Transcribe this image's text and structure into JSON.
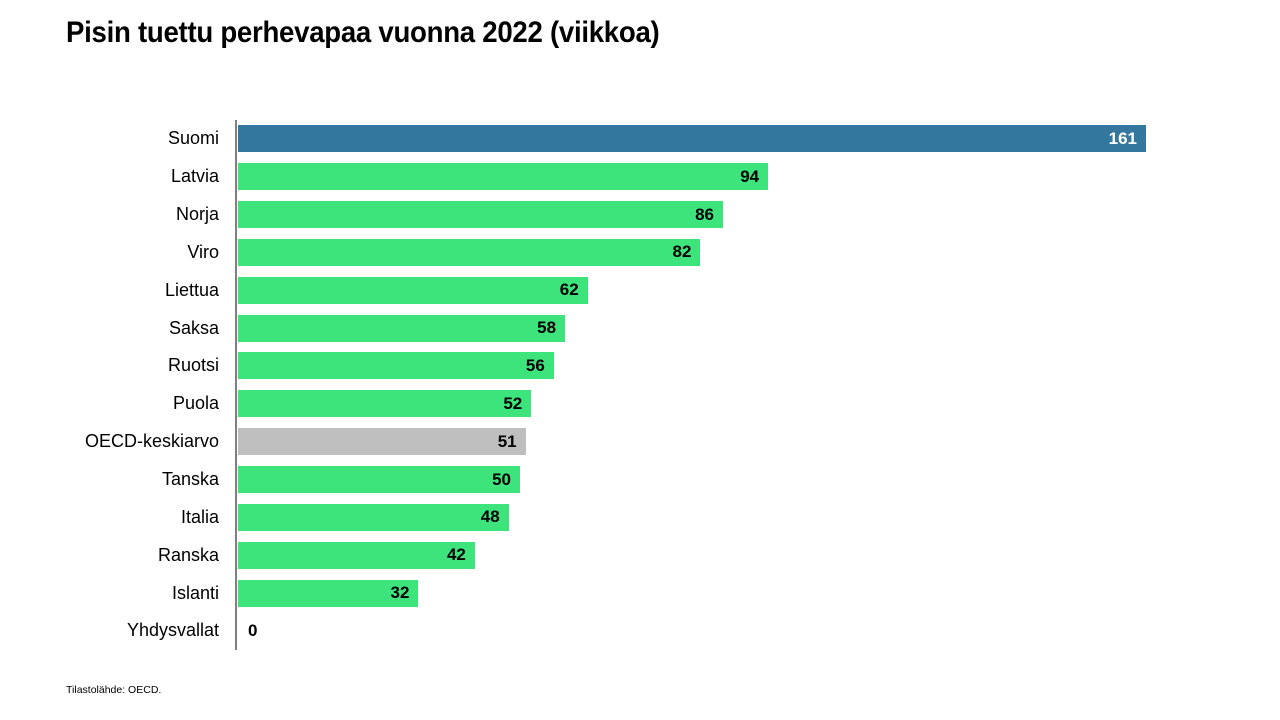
{
  "title": "Pisin tuettu perhevapaa vuonna 2022 (viikkoa)",
  "footer": {
    "source": "Tilastolähde: OECD."
  },
  "colors": {
    "default_bar": "#3de47c",
    "highlight_bar": "#34779e",
    "average_bar": "#bfbfbf",
    "axis": "#808080",
    "value_label_default": "#000000",
    "value_label_on_highlight": "#ffffff",
    "background": "#ffffff",
    "text": "#000000"
  },
  "chart_data": {
    "type": "bar",
    "orientation": "horizontal",
    "title": "Pisin tuettu perhevapaa vuonna 2022 (viikkoa)",
    "xlabel": "",
    "ylabel": "",
    "xlim": [
      0,
      161
    ],
    "grid": false,
    "legend": false,
    "value_labels": "inside-end",
    "categories": [
      "Suomi",
      "Latvia",
      "Norja",
      "Viro",
      "Liettua",
      "Saksa",
      "Ruotsi",
      "Puola",
      "OECD-keskiarvo",
      "Tanska",
      "Italia",
      "Ranska",
      "Islanti",
      "Yhdysvallat"
    ],
    "values": [
      161,
      94,
      86,
      82,
      62,
      58,
      56,
      52,
      51,
      50,
      48,
      42,
      32,
      0
    ],
    "roles": [
      "highlight",
      "default",
      "default",
      "default",
      "default",
      "default",
      "default",
      "default",
      "average",
      "default",
      "default",
      "default",
      "default",
      "default"
    ]
  }
}
